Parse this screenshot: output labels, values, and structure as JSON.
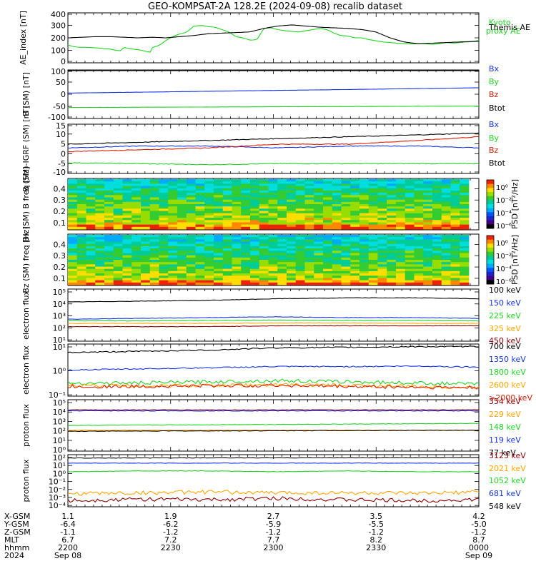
{
  "title": "GEO-KOMPSAT-2A 128.2E (2024-09-08) recalib dataset",
  "colors": {
    "black": "#000000",
    "red": "#d81e06",
    "green": "#22d322",
    "blue": "#1433e6",
    "orange": "#ffa500",
    "darkred": "#8b0000",
    "lightgreen": "#33cc33"
  },
  "chart_data": [
    {
      "type": "line",
      "ylabel": "AE_index [nT]",
      "ylim": [
        0,
        400
      ],
      "yticks": [
        "400",
        "300",
        "200",
        "100",
        "0"
      ],
      "series": [
        {
          "name": "Kyoto proxy AE",
          "color": "#22d322",
          "x": [
            0,
            8,
            15,
            25,
            32,
            40,
            50,
            60,
            68,
            75,
            80,
            86,
            92,
            100,
            108,
            115,
            118,
            121,
            128,
            134,
            138,
            145,
            150,
            158,
            165,
            170,
            180,
            192,
            200,
            210,
            220,
            230,
            240,
            250,
            260,
            270,
            280,
            290,
            300,
            310,
            320,
            330,
            340,
            350,
            360,
            370,
            380,
            390,
            400,
            410,
            420,
            430,
            440,
            450,
            460,
            470,
            480,
            490,
            500,
            510,
            520,
            530,
            540,
            550,
            560,
            570,
            580,
            587
          ],
          "y": [
            140,
            125,
            120,
            120,
            118,
            115,
            110,
            105,
            95,
            90,
            120,
            110,
            105,
            100,
            90,
            80,
            78,
            120,
            130,
            150,
            170,
            195,
            210,
            230,
            240,
            250,
            300,
            305,
            295,
            290,
            270,
            250,
            210,
            200,
            180,
            185,
            280,
            285,
            270,
            260,
            255,
            250,
            260,
            270,
            280,
            270,
            240,
            220,
            215,
            200,
            200,
            185,
            175,
            165,
            160,
            155,
            150,
            148,
            150,
            150,
            145,
            150,
            160,
            155,
            160,
            165,
            170,
            180
          ]
        },
        {
          "name": "Themis AE",
          "color": "#000000",
          "x": [
            0,
            20,
            40,
            60,
            80,
            100,
            120,
            140,
            160,
            180,
            200,
            220,
            240,
            260,
            280,
            300,
            320,
            340,
            360,
            380,
            400,
            420,
            440,
            460,
            480,
            500,
            520,
            540,
            560,
            587
          ],
          "y": [
            200,
            205,
            210,
            210,
            205,
            200,
            205,
            200,
            210,
            220,
            235,
            240,
            245,
            250,
            280,
            300,
            310,
            300,
            290,
            285,
            280,
            270,
            250,
            200,
            165,
            150,
            155,
            160,
            165,
            170
          ]
        }
      ]
    },
    {
      "type": "line",
      "ylabel": "B (SM) [nT]",
      "ylim": [
        -100,
        100
      ],
      "yticks": [
        "100",
        "50",
        "0",
        "-50",
        "-100"
      ],
      "series": [
        {
          "name": "Bx",
          "color": "#1433e6",
          "x": [
            0,
            587
          ],
          "y": [
            5,
            28
          ]
        },
        {
          "name": "By",
          "color": "#22d322",
          "x": [
            0,
            587
          ],
          "y": [
            -58,
            -52
          ]
        },
        {
          "name": "Bz",
          "color": "#d81e06",
          "x": [
            0,
            587
          ],
          "y": [
            103,
            107
          ]
        },
        {
          "name": "Btot",
          "color": "#000000",
          "x": [
            0,
            587
          ],
          "y": [
            107,
            110
          ]
        }
      ]
    },
    {
      "type": "line",
      "ylabel": "B (SM)-IGRF (SM) [nT]",
      "ylim": [
        -10,
        15
      ],
      "yticks": [
        "15",
        "10",
        "5",
        "0",
        "-5",
        "-10"
      ],
      "series": [
        {
          "name": "Bx",
          "color": "#1433e6",
          "x": [
            0,
            100,
            200,
            300,
            400,
            500,
            587
          ],
          "y": [
            3,
            4,
            4,
            3,
            4,
            4,
            3
          ]
        },
        {
          "name": "By",
          "color": "#22d322",
          "x": [
            0,
            100,
            200,
            300,
            400,
            500,
            587
          ],
          "y": [
            -5,
            -5.5,
            -6,
            -5.5,
            -5.5,
            -5.5,
            -5.5
          ]
        },
        {
          "name": "Bz",
          "color": "#d81e06",
          "x": [
            0,
            100,
            200,
            300,
            400,
            500,
            587
          ],
          "y": [
            1,
            2,
            3,
            5,
            5,
            7,
            9
          ]
        },
        {
          "name": "Btot",
          "color": "#000000",
          "x": [
            0,
            100,
            200,
            300,
            400,
            500,
            587
          ],
          "y": [
            5,
            6,
            7,
            8,
            9,
            10,
            11
          ]
        }
      ]
    },
    {
      "type": "heatmap",
      "ylabel": "Bx (SM) B freq [Hz]",
      "yticks": [
        "0.4",
        "0.3",
        "0.2",
        "0.1"
      ],
      "colorbar_label": "PSD [nT²/Hz]",
      "colorbar_ticks": [
        "10⁰",
        "10⁻²",
        "10⁻⁴",
        "10⁻⁶"
      ]
    },
    {
      "type": "heatmap",
      "ylabel": "Bz (SM) freq [Hz]",
      "yticks": [
        "0.4",
        "0.3",
        "0.2",
        "0.1"
      ],
      "colorbar_label": "PSD [nT²/Hz]",
      "colorbar_ticks": [
        "10⁰",
        "10⁻²",
        "10⁻⁴",
        "10⁻⁶"
      ]
    },
    {
      "type": "line",
      "ylabel": "electron flux",
      "log": true,
      "ylim_exp": [
        0,
        6
      ],
      "yticks": [
        "10⁵",
        "10⁴",
        "10³",
        "10²",
        "10¹"
      ],
      "series": [
        {
          "name": "100 keV",
          "color": "#000000",
          "x": [
            0,
            100,
            200,
            300,
            400,
            500,
            587
          ],
          "y_exp": [
            4.6,
            4.7,
            4.8,
            5.0,
            5.1,
            5.1,
            5.0
          ]
        },
        {
          "name": "150 keV",
          "color": "#1433e6",
          "x": [
            0,
            100,
            200,
            300,
            400,
            500,
            587
          ],
          "y_exp": [
            2.5,
            2.6,
            2.7,
            2.8,
            2.7,
            2.7,
            2.6
          ]
        },
        {
          "name": "225 keV",
          "color": "#22d322",
          "x": [
            0,
            100,
            200,
            300,
            400,
            500,
            587
          ],
          "y_exp": [
            2.3,
            2.3,
            2.35,
            2.4,
            2.35,
            2.35,
            2.3
          ]
        },
        {
          "name": "325 keV",
          "color": "#ffa500",
          "x": [
            0,
            100,
            200,
            300,
            400,
            500,
            587
          ],
          "y_exp": [
            2.0,
            2.0,
            2.0,
            2.05,
            2.05,
            2.0,
            2.0
          ]
        },
        {
          "name": "450 keV",
          "color": "#8b0000",
          "x": [
            0,
            100,
            200,
            300,
            400,
            500,
            587
          ],
          "y_exp": [
            1.6,
            1.6,
            1.6,
            1.7,
            1.7,
            1.7,
            1.7
          ]
        }
      ]
    },
    {
      "type": "line",
      "ylabel": "electron flux",
      "log": true,
      "ylim_exp": [
        -1.1,
        1.0
      ],
      "yticks": [
        "10¹",
        "10⁰",
        "10⁻¹"
      ],
      "series": [
        {
          "name": "700 keV",
          "color": "#000000",
          "x": [
            0,
            100,
            200,
            300,
            400,
            500,
            587
          ],
          "y_exp": [
            0.7,
            0.75,
            0.8,
            0.9,
            0.92,
            0.95,
            0.95
          ]
        },
        {
          "name": "1350 keV",
          "color": "#1433e6",
          "x": [
            0,
            100,
            200,
            300,
            400,
            500,
            587
          ],
          "y_exp": [
            -0.05,
            0.0,
            0.05,
            0.1,
            0.1,
            0.12,
            0.08
          ]
        },
        {
          "name": "1800 keV",
          "color": "#22d322",
          "x": [
            0,
            100,
            200,
            300,
            400,
            500,
            587
          ],
          "y_exp": [
            -0.6,
            -0.6,
            -0.55,
            -0.5,
            -0.55,
            -0.6,
            -0.65
          ]
        },
        {
          "name": "2600 keV",
          "color": "#ffa500",
          "x": [
            0,
            100,
            200,
            300,
            400,
            500,
            587
          ],
          "y_exp": [
            -0.7,
            -0.72,
            -0.7,
            -0.68,
            -0.7,
            -0.75,
            -0.8
          ]
        },
        {
          "name": ">2000 keV",
          "color": "#d81e06",
          "x": [
            0,
            100,
            200,
            300,
            400,
            500,
            587
          ],
          "y_exp": [
            -0.75,
            -0.75,
            -0.72,
            -0.7,
            -0.75,
            -0.78,
            -0.8
          ]
        }
      ]
    },
    {
      "type": "line",
      "ylabel": "proton flux",
      "log": true,
      "ylim_exp": [
        0,
        5
      ],
      "yticks": [
        "10⁵",
        "10⁴",
        "10³",
        "10²",
        "10¹",
        "10⁰"
      ],
      "series": [
        {
          "name": "354 keV",
          "color": "#8b0000",
          "x": [
            0,
            587
          ],
          "y_exp": [
            4.1,
            4.1
          ]
        },
        {
          "name": "229 keV",
          "color": "#ffa500",
          "x": [
            0,
            587
          ],
          "y_exp": [
            2.0,
            2.0
          ]
        },
        {
          "name": "148 keV",
          "color": "#22d322",
          "x": [
            0,
            587
          ],
          "y_exp": [
            2.5,
            2.7
          ]
        },
        {
          "name": "119 keV",
          "color": "#1433e6",
          "x": [
            0,
            587
          ],
          "y_exp": [
            4.0,
            4.0
          ]
        },
        {
          "name": "77 keV",
          "color": "#000000",
          "x": [
            0,
            587
          ],
          "y_exp": [
            1.9,
            2.0
          ]
        }
      ]
    },
    {
      "type": "line",
      "ylabel": "proton flux",
      "log": true,
      "ylim_exp": [
        -4.3,
        2.0
      ],
      "yticks": [
        "10²",
        "10¹",
        "10⁰",
        "10⁻¹",
        "10⁻²",
        "10⁻³",
        "10⁻⁴"
      ],
      "series": [
        {
          "name": "3123 keV",
          "color": "#8b0000",
          "x": [
            0,
            100,
            200,
            300,
            400,
            500,
            587
          ],
          "y_exp": [
            -3.7,
            -3.5,
            -3.6,
            -3.4,
            -3.6,
            -3.7,
            -3.6
          ]
        },
        {
          "name": "2021 keV",
          "color": "#ffa500",
          "x": [
            0,
            100,
            200,
            300,
            400,
            500,
            587
          ],
          "y_exp": [
            -2.8,
            -2.7,
            -2.6,
            -2.7,
            -2.7,
            -2.8,
            -2.6
          ]
        },
        {
          "name": "1052 keV",
          "color": "#22d322",
          "x": [
            0,
            100,
            200,
            300,
            400,
            500,
            587
          ],
          "y_exp": [
            0.0,
            0.1,
            0.1,
            0.0,
            0.1,
            0.0,
            0.0
          ]
        },
        {
          "name": "681 keV",
          "color": "#1433e6",
          "x": [
            0,
            587
          ],
          "y_exp": [
            1.1,
            1.1
          ]
        },
        {
          "name": "548 keV",
          "color": "#000000",
          "x": [
            0,
            587
          ],
          "y_exp": [
            1.75,
            1.8
          ]
        }
      ]
    }
  ],
  "footer": {
    "rows": [
      {
        "label": "X-GSM",
        "values": [
          "1.1",
          "1.9",
          "2.7",
          "3.5",
          "4.2"
        ]
      },
      {
        "label": "Y-GSM",
        "values": [
          "-6.4",
          "-6.2",
          "-5.9",
          "-5.5",
          "-5.0"
        ]
      },
      {
        "label": "Z-GSM",
        "values": [
          "-1.1",
          "-1.2",
          "-1.2",
          "-1.2",
          "-1.2"
        ]
      },
      {
        "label": "MLT",
        "values": [
          "6.7",
          "7.2",
          "7.7",
          "8.2",
          "8.7"
        ]
      },
      {
        "label": "hhmm",
        "values": [
          "2200",
          "2230",
          "2300",
          "2330",
          "0000"
        ]
      },
      {
        "label": "2024",
        "values": [
          "Sep 08",
          "",
          "",
          "",
          "Sep 09"
        ]
      }
    ]
  }
}
